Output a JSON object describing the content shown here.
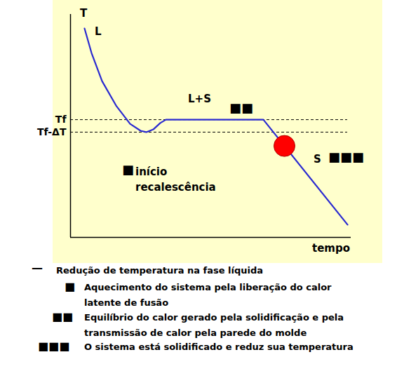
{
  "chart_data": {
    "type": "line",
    "x_label": "tempo",
    "y_label": "T",
    "x": [
      5,
      7.5,
      11.25,
      16.25,
      21.25,
      25,
      27,
      29.5,
      32,
      34,
      68.75,
      98.75
    ],
    "xlim": [
      0,
      100
    ],
    "xticks": [],
    "ylim": [
      0,
      100
    ],
    "yticks": [
      {
        "value": 52.8,
        "label": "Tf"
      },
      {
        "value": 47.2,
        "label": "Tf-ΔT"
      }
    ],
    "tick_labels": "y",
    "grid": false,
    "series": [
      {
        "color": "#2a2ad0",
        "values": [
          93.7,
          82.7,
          70.1,
          59.1,
          50.9,
          47.8,
          47.2,
          48.4,
          51.3,
          52.8,
          52.8,
          5.7
        ]
      },
      {
        "type": "scatter",
        "marker": "circle",
        "color": "#ff0000",
        "x": [
          76.25
        ],
        "values": [
          41.0
        ]
      }
    ],
    "annotations": [
      "L",
      "L+S",
      "■■",
      "■",
      "início recalescência",
      "S",
      "■■■"
    ],
    "notes": [
      {
        "symbol": "—",
        "text": "Redução de temperatura na fase líquida"
      },
      {
        "symbol": "■",
        "text": "Aquecimento do sistema pela liberação do calor latente de fusão"
      },
      {
        "symbol": "■■",
        "text": "Equilíbrio do calor gerado pela solidificação e pela transmissão de calor pela parede do molde"
      },
      {
        "symbol": "■■■",
        "text": "O sistema está solidificado e reduz sua temperatura"
      }
    ]
  }
}
